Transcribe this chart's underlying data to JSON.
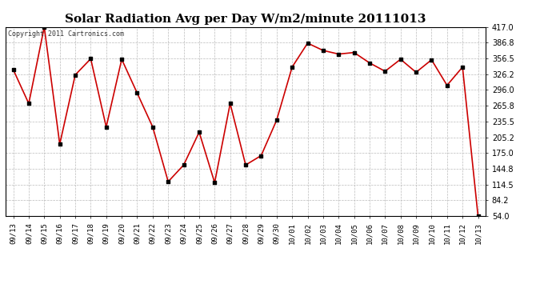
{
  "title": "Solar Radiation Avg per Day W/m2/minute 20111013",
  "copyright": "Copyright 2011 Cartronics.com",
  "x_labels": [
    "09/13",
    "09/14",
    "09/15",
    "09/16",
    "09/17",
    "09/18",
    "09/19",
    "09/20",
    "09/21",
    "09/22",
    "09/23",
    "09/24",
    "09/25",
    "09/26",
    "09/27",
    "09/28",
    "09/29",
    "09/30",
    "10/01",
    "10/02",
    "10/03",
    "10/04",
    "10/05",
    "10/06",
    "10/07",
    "10/08",
    "10/09",
    "10/10",
    "10/11",
    "10/12",
    "10/13"
  ],
  "values": [
    335,
    270,
    417,
    192,
    325,
    356,
    225,
    355,
    290,
    225,
    120,
    152,
    215,
    118,
    270,
    152,
    170,
    238,
    340,
    386,
    372,
    365,
    368,
    348,
    332,
    355,
    330,
    354,
    305,
    340,
    54
  ],
  "y_ticks": [
    54.0,
    84.2,
    114.5,
    144.8,
    175.0,
    205.2,
    235.5,
    265.8,
    296.0,
    326.2,
    356.5,
    386.8,
    417.0
  ],
  "y_min": 54.0,
  "y_max": 417.0,
  "line_color": "#cc0000",
  "marker_color": "#000000",
  "bg_color": "#ffffff",
  "plot_bg_color": "#ffffff",
  "grid_color": "#bbbbbb",
  "title_fontsize": 11,
  "copyright_fontsize": 6,
  "tick_fontsize": 6.5,
  "y_tick_fontsize": 7
}
